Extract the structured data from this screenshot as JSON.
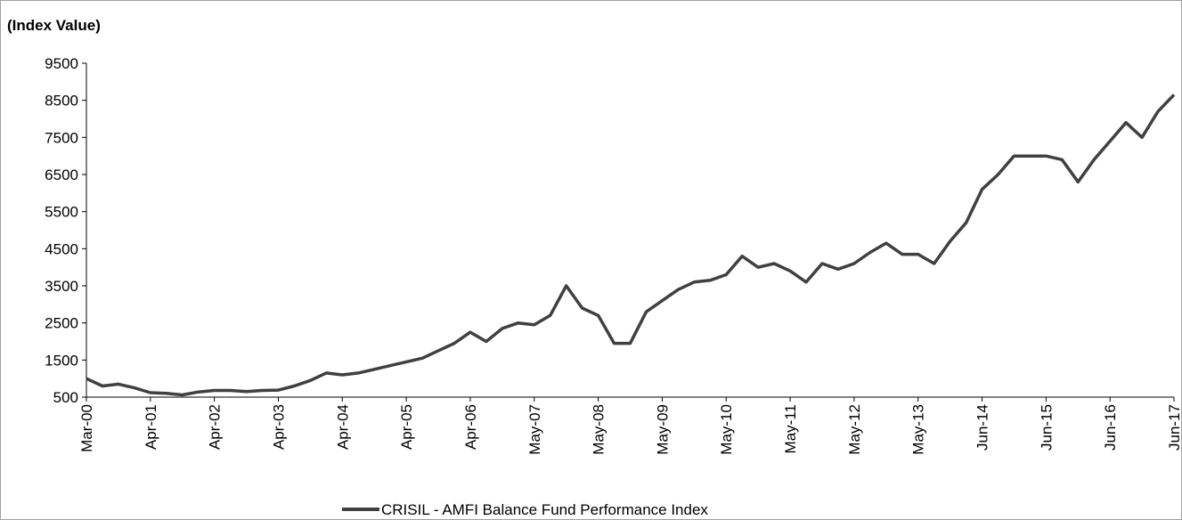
{
  "chart_data": {
    "type": "line",
    "ylabel": "(Index Value)",
    "categories": [
      "Mar-00",
      null,
      null,
      null,
      "Apr-01",
      null,
      null,
      null,
      "Apr-02",
      null,
      null,
      null,
      "Apr-03",
      null,
      null,
      null,
      "Apr-04",
      null,
      null,
      null,
      "Apr-05",
      null,
      null,
      null,
      "Apr-06",
      null,
      null,
      null,
      "May-07",
      null,
      null,
      null,
      "May-08",
      null,
      null,
      null,
      "May-09",
      null,
      null,
      null,
      "May-10",
      null,
      null,
      null,
      "May-11",
      null,
      null,
      null,
      "May-12",
      null,
      null,
      null,
      "May-13",
      null,
      null,
      null,
      "Jun-14",
      null,
      null,
      null,
      "Jun-15",
      null,
      null,
      null,
      "Jun-16",
      null,
      null,
      null,
      "Jun-17"
    ],
    "series": [
      {
        "name": "CRISIL - AMFI Balance Fund Performance Index",
        "color": "#404040",
        "values": [
          1000,
          800,
          850,
          750,
          620,
          600,
          560,
          640,
          680,
          680,
          650,
          680,
          690,
          800,
          950,
          1150,
          1100,
          1150,
          1250,
          1350,
          1450,
          1550,
          1750,
          1950,
          2250,
          2000,
          2350,
          2500,
          2450,
          2700,
          3500,
          2900,
          2700,
          1950,
          1950,
          2800,
          3100,
          3400,
          3600,
          3650,
          3800,
          4300,
          4000,
          4100,
          3900,
          3600,
          4100,
          3950,
          4100,
          4400,
          4650,
          4350,
          4350,
          4100,
          4700,
          5200,
          6100,
          6500,
          7000,
          7000,
          7000,
          6900,
          6300,
          6900,
          7400,
          7900,
          7500,
          8200,
          8650
        ]
      }
    ],
    "ylim": [
      500,
      9500
    ],
    "yticks": [
      500,
      1500,
      2500,
      3500,
      4500,
      5500,
      6500,
      7500,
      8500,
      9500
    ],
    "legend": "bottom"
  }
}
